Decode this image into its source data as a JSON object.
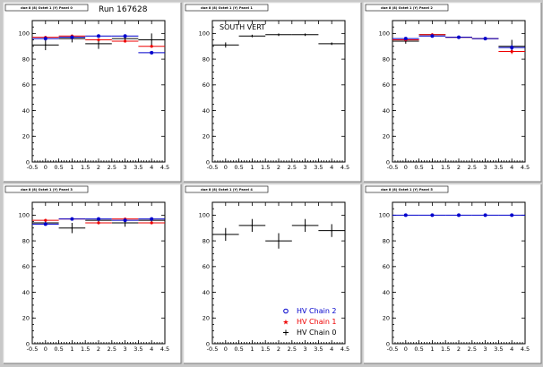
{
  "run_label": "Run 167628",
  "colors": {
    "chain0": "#000000",
    "chain1": "#ee0000",
    "chain2": "#0000cc",
    "background": "#c8c8c8"
  },
  "chart_data": [
    {
      "type": "scatter",
      "title": "doe 8 (8) Octet 1 (Y) Panel 0",
      "xlim": [
        -0.5,
        4.5
      ],
      "ylim": [
        0,
        110
      ],
      "x_ticks": [
        "-0.5",
        "0",
        "0.5",
        "1",
        "1.5",
        "2",
        "2.5",
        "3",
        "3.5",
        "4",
        "4.5"
      ],
      "y_ticks": [
        "0",
        "20",
        "40",
        "60",
        "80",
        "100"
      ],
      "series": [
        {
          "name": "HV Chain 0",
          "color": "#000000",
          "marker": "plus",
          "x": [
            0,
            1,
            2,
            3,
            4
          ],
          "y": [
            91,
            96,
            92,
            96,
            95
          ],
          "xerr": [
            0.5,
            0.5,
            0.5,
            0.5,
            0.5
          ],
          "yerr": [
            4,
            3,
            4,
            3,
            5
          ]
        },
        {
          "name": "HV Chain 1",
          "color": "#ee0000",
          "marker": "star",
          "x": [
            0,
            1,
            2,
            3,
            4
          ],
          "y": [
            97,
            98,
            95,
            94,
            90
          ],
          "xerr": [
            0.5,
            0.5,
            0.5,
            0.5,
            0.5
          ],
          "yerr": [
            1,
            1,
            1,
            1,
            1
          ]
        },
        {
          "name": "HV Chain 2",
          "color": "#0000cc",
          "marker": "circle",
          "x": [
            0,
            1,
            2,
            3,
            4
          ],
          "y": [
            96,
            97,
            98,
            98,
            85
          ],
          "xerr": [
            0.5,
            0.5,
            0.5,
            0.5,
            0.5
          ],
          "yerr": [
            1,
            1,
            1,
            1,
            1
          ]
        }
      ]
    },
    {
      "type": "scatter",
      "title": "doe 8 (8) Octet 1 (Y) Panel 1",
      "note": "SOUTH VERT",
      "xlim": [
        -0.5,
        4.5
      ],
      "ylim": [
        0,
        110
      ],
      "x_ticks": [
        "-0.5",
        "0",
        "0.5",
        "1",
        "1.5",
        "2",
        "2.5",
        "3",
        "3.5",
        "4",
        "4.5"
      ],
      "y_ticks": [
        "0",
        "20",
        "40",
        "60",
        "80",
        "100"
      ],
      "series": [
        {
          "name": "HV Chain 0",
          "color": "#000000",
          "marker": "plus",
          "x": [
            0,
            1,
            2,
            3,
            4
          ],
          "y": [
            91,
            98,
            99,
            99,
            92
          ],
          "xerr": [
            0.5,
            0.5,
            0.5,
            0.5,
            0.5
          ],
          "yerr": [
            2,
            1,
            1,
            1,
            1
          ]
        }
      ]
    },
    {
      "type": "scatter",
      "title": "doe 8 (8) Octet 1 (Y) Panel 2",
      "xlim": [
        -0.5,
        4.5
      ],
      "ylim": [
        0,
        110
      ],
      "x_ticks": [
        "-0.5",
        "0",
        "0.5",
        "1",
        "1.5",
        "2",
        "2.5",
        "3",
        "3.5",
        "4",
        "4.5"
      ],
      "y_ticks": [
        "0",
        "20",
        "40",
        "60",
        "80",
        "100"
      ],
      "series": [
        {
          "name": "HV Chain 0",
          "color": "#000000",
          "marker": "plus",
          "x": [
            0,
            1,
            2,
            3,
            4
          ],
          "y": [
            94,
            99,
            97,
            96,
            90
          ],
          "xerr": [
            0.5,
            0.5,
            0.5,
            0.5,
            0.5
          ],
          "yerr": [
            2,
            1,
            1,
            1,
            5
          ]
        },
        {
          "name": "HV Chain 1",
          "color": "#ee0000",
          "marker": "star",
          "x": [
            0,
            1,
            2,
            3,
            4
          ],
          "y": [
            95,
            99,
            97,
            96,
            86
          ],
          "xerr": [
            0.5,
            0.5,
            0.5,
            0.5,
            0.5
          ],
          "yerr": [
            1,
            1,
            1,
            1,
            2
          ]
        },
        {
          "name": "HV Chain 2",
          "color": "#0000cc",
          "marker": "circle",
          "x": [
            0,
            1,
            2,
            3,
            4
          ],
          "y": [
            96,
            98,
            97,
            96,
            89
          ],
          "xerr": [
            0.5,
            0.5,
            0.5,
            0.5,
            0.5
          ],
          "yerr": [
            1,
            1,
            1,
            1,
            2
          ]
        }
      ]
    },
    {
      "type": "scatter",
      "title": "doe 8 (8) Octet 1 (Y) Panel 3",
      "xlim": [
        -0.5,
        4.5
      ],
      "ylim": [
        0,
        110
      ],
      "x_ticks": [
        "-0.5",
        "0",
        "0.5",
        "1",
        "1.5",
        "2",
        "2.5",
        "3",
        "3.5",
        "4",
        "4.5"
      ],
      "y_ticks": [
        "0",
        "20",
        "40",
        "60",
        "80",
        "100"
      ],
      "series": [
        {
          "name": "HV Chain 0",
          "color": "#000000",
          "marker": "plus",
          "x": [
            0,
            1,
            2,
            3,
            4
          ],
          "y": [
            94,
            90,
            96,
            94,
            96
          ],
          "xerr": [
            0.5,
            0.5,
            0.5,
            0.5,
            0.5
          ],
          "yerr": [
            2,
            4,
            2,
            3,
            1
          ]
        },
        {
          "name": "HV Chain 1",
          "color": "#ee0000",
          "marker": "star",
          "x": [
            0,
            1,
            2,
            3,
            4
          ],
          "y": [
            96,
            97,
            94,
            97,
            94
          ],
          "xerr": [
            0.5,
            0.5,
            0.5,
            0.5,
            0.5
          ],
          "yerr": [
            1,
            1,
            1,
            1,
            1
          ]
        },
        {
          "name": "HV Chain 2",
          "color": "#0000cc",
          "marker": "circle",
          "x": [
            0,
            1,
            2,
            3,
            4
          ],
          "y": [
            93,
            97,
            97,
            96,
            97
          ],
          "xerr": [
            0.5,
            0.5,
            0.5,
            0.5,
            0.5
          ],
          "yerr": [
            1,
            1,
            1,
            1,
            1
          ]
        }
      ]
    },
    {
      "type": "scatter",
      "title": "doe 8 (8) Octet 1 (Y) Panel 4",
      "xlim": [
        -0.5,
        4.5
      ],
      "ylim": [
        0,
        110
      ],
      "x_ticks": [
        "-0.5",
        "0",
        "0.5",
        "1",
        "1.5",
        "2",
        "2.5",
        "3",
        "3.5",
        "4",
        "4.5"
      ],
      "y_ticks": [
        "0",
        "20",
        "40",
        "60",
        "80",
        "100"
      ],
      "legend": [
        "HV Chain 2",
        "HV Chain 1",
        "HV Chain 0"
      ],
      "legend_position": "bottom-right",
      "series": [
        {
          "name": "HV Chain 0",
          "color": "#000000",
          "marker": "plus",
          "x": [
            0,
            1,
            2,
            3,
            4
          ],
          "y": [
            85,
            92,
            80,
            92,
            88
          ],
          "xerr": [
            0.5,
            0.5,
            0.5,
            0.5,
            0.5
          ],
          "yerr": [
            5,
            5,
            6,
            5,
            5
          ]
        }
      ]
    },
    {
      "type": "scatter",
      "title": "doe 8 (8) Octet 1 (Y) Panel 5",
      "xlim": [
        -0.5,
        4.5
      ],
      "ylim": [
        0,
        110
      ],
      "x_ticks": [
        "-0.5",
        "0",
        "0.5",
        "1",
        "1.5",
        "2",
        "2.5",
        "3",
        "3.5",
        "4",
        "4.5"
      ],
      "y_ticks": [
        "0",
        "20",
        "40",
        "60",
        "80",
        "100"
      ],
      "series": [
        {
          "name": "HV Chain 2",
          "color": "#0000cc",
          "marker": "circle",
          "x": [
            0,
            1,
            2,
            3,
            4
          ],
          "y": [
            100,
            100,
            100,
            100,
            100
          ],
          "xerr": [
            0.5,
            0.5,
            0.5,
            0.5,
            0.5
          ],
          "yerr": [
            0,
            0,
            0,
            0,
            0
          ]
        }
      ]
    }
  ]
}
